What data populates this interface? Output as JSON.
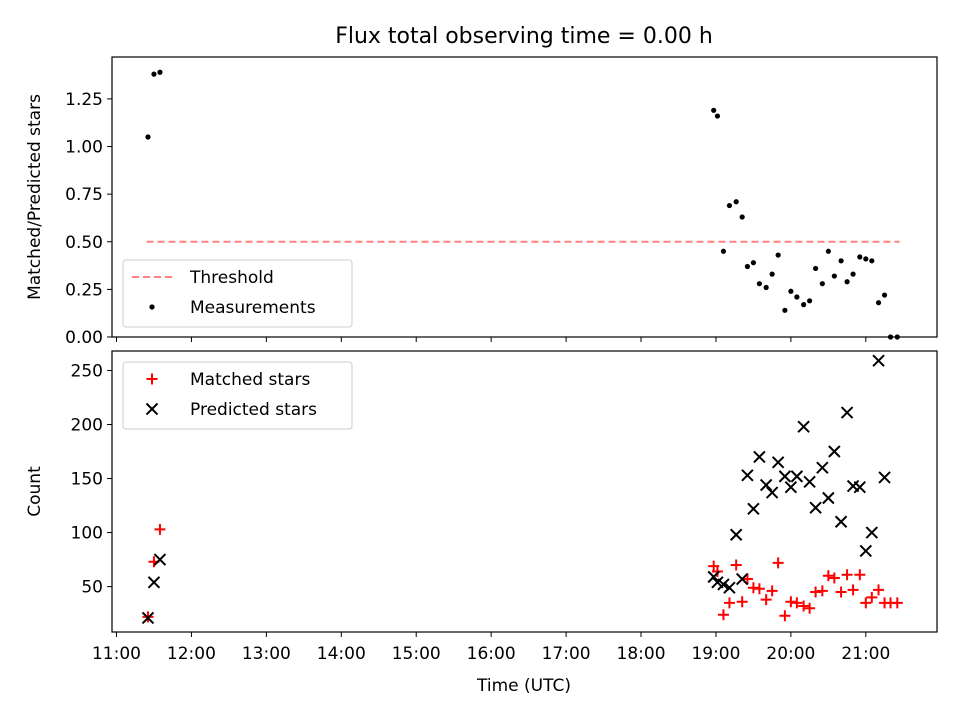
{
  "chart_data": {
    "type": "scatter",
    "title": "Flux total observing time = 0.00 h",
    "xlabel": "Time (UTC)",
    "x_ticks": [
      "11:00",
      "12:00",
      "13:00",
      "14:00",
      "15:00",
      "16:00",
      "17:00",
      "18:00",
      "19:00",
      "20:00",
      "21:00"
    ],
    "xlim_hours": [
      10.94,
      21.95
    ],
    "panels": [
      {
        "ylabel": "Matched/Predicted stars",
        "ylim": [
          0,
          1.47
        ],
        "y_ticks": [
          0.0,
          0.25,
          0.5,
          0.75,
          1.0,
          1.25
        ],
        "y_tick_labels": [
          "0.00",
          "0.25",
          "0.50",
          "0.75",
          "1.00",
          "1.25"
        ],
        "legend": {
          "placement": "lower-left",
          "entries": [
            "Threshold",
            "Measurements"
          ]
        },
        "series": [
          {
            "name": "Threshold",
            "kind": "dashed-line",
            "color": "#ff8080",
            "x": [
              11.4,
              21.45
            ],
            "y": [
              0.5,
              0.5
            ]
          },
          {
            "name": "Measurements",
            "kind": "dot",
            "color": "#000000",
            "x": [
              11.42,
              11.5,
              11.58,
              18.97,
              19.02,
              19.1,
              19.18,
              19.27,
              19.35,
              19.42,
              19.5,
              19.58,
              19.67,
              19.75,
              19.83,
              19.92,
              20.0,
              20.08,
              20.17,
              20.25,
              20.33,
              20.42,
              20.5,
              20.58,
              20.67,
              20.75,
              20.83,
              20.92,
              21.0,
              21.08,
              21.17,
              21.25,
              21.33,
              21.42
            ],
            "y": [
              1.05,
              1.38,
              1.39,
              1.19,
              1.16,
              0.45,
              0.69,
              0.71,
              0.63,
              0.37,
              0.39,
              0.28,
              0.26,
              0.33,
              0.43,
              0.14,
              0.24,
              0.21,
              0.17,
              0.19,
              0.36,
              0.28,
              0.45,
              0.32,
              0.4,
              0.29,
              0.33,
              0.42,
              0.41,
              0.4,
              0.18,
              0.22,
              0.0,
              0.0
            ]
          }
        ]
      },
      {
        "ylabel": "Count",
        "ylim": [
          8,
          268
        ],
        "y_ticks": [
          50,
          100,
          150,
          200,
          250
        ],
        "y_tick_labels": [
          "50",
          "100",
          "150",
          "200",
          "250"
        ],
        "legend": {
          "placement": "upper-left",
          "entries": [
            "Matched stars",
            "Predicted stars"
          ]
        },
        "series": [
          {
            "name": "Matched stars",
            "kind": "plus",
            "color": "#ff0000",
            "x": [
              11.42,
              11.5,
              11.58,
              18.97,
              19.02,
              19.1,
              19.18,
              19.27,
              19.35,
              19.42,
              19.5,
              19.58,
              19.67,
              19.75,
              19.83,
              19.92,
              20.0,
              20.08,
              20.17,
              20.25,
              20.33,
              20.42,
              20.5,
              20.58,
              20.67,
              20.75,
              20.83,
              20.92,
              21.0,
              21.08,
              21.17,
              21.25,
              21.33,
              21.42
            ],
            "y": [
              22,
              73,
              103,
              69,
              64,
              24,
              35,
              70,
              36,
              57,
              49,
              48,
              38,
              46,
              72,
              23,
              36,
              35,
              32,
              30,
              45,
              46,
              60,
              58,
              45,
              61,
              47,
              61,
              35,
              40,
              47,
              35,
              35,
              35
            ]
          },
          {
            "name": "Predicted stars",
            "kind": "x",
            "color": "#000000",
            "x": [
              11.42,
              11.5,
              11.58,
              18.97,
              19.02,
              19.1,
              19.18,
              19.27,
              19.35,
              19.42,
              19.5,
              19.58,
              19.67,
              19.75,
              19.83,
              19.92,
              20.0,
              20.08,
              20.17,
              20.25,
              20.33,
              20.42,
              20.5,
              20.58,
              20.67,
              20.75,
              20.83,
              20.92,
              21.0,
              21.08,
              21.17,
              21.25
            ],
            "y": [
              21,
              54,
              75,
              59,
              54,
              52,
              49,
              98,
              57,
              153,
              122,
              170,
              144,
              137,
              165,
              152,
              142,
              152,
              198,
              147,
              123,
              160,
              132,
              175,
              110,
              211,
              143,
              142,
              83,
              100,
              259,
              151
            ]
          }
        ]
      }
    ]
  }
}
